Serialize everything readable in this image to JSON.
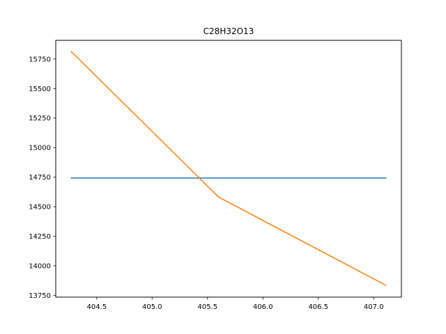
{
  "chart_data": {
    "type": "line",
    "title": "C28H32O13",
    "xlabel": "",
    "ylabel": "",
    "xlim": [
      404.13,
      407.25
    ],
    "ylim": [
      13735,
      15908
    ],
    "x_ticks": [
      404.5,
      405.0,
      405.5,
      406.0,
      406.5,
      407.0
    ],
    "x_tick_labels": [
      "404.5",
      "405.0",
      "405.5",
      "406.0",
      "406.5",
      "407.0"
    ],
    "y_ticks": [
      13750,
      14000,
      14250,
      14500,
      14750,
      15000,
      15250,
      15500,
      15750
    ],
    "y_tick_labels": [
      "13750",
      "14000",
      "14250",
      "14500",
      "14750",
      "15000",
      "15250",
      "15500",
      "15750"
    ],
    "grid": false,
    "series": [
      {
        "color": "#1f77b4",
        "x": [
          404.27,
          407.11
        ],
        "y": [
          14743,
          14743
        ]
      },
      {
        "color": "#ff7f0e",
        "x": [
          404.27,
          405.6,
          407.11
        ],
        "y": [
          15813,
          14582,
          13835
        ]
      }
    ]
  }
}
